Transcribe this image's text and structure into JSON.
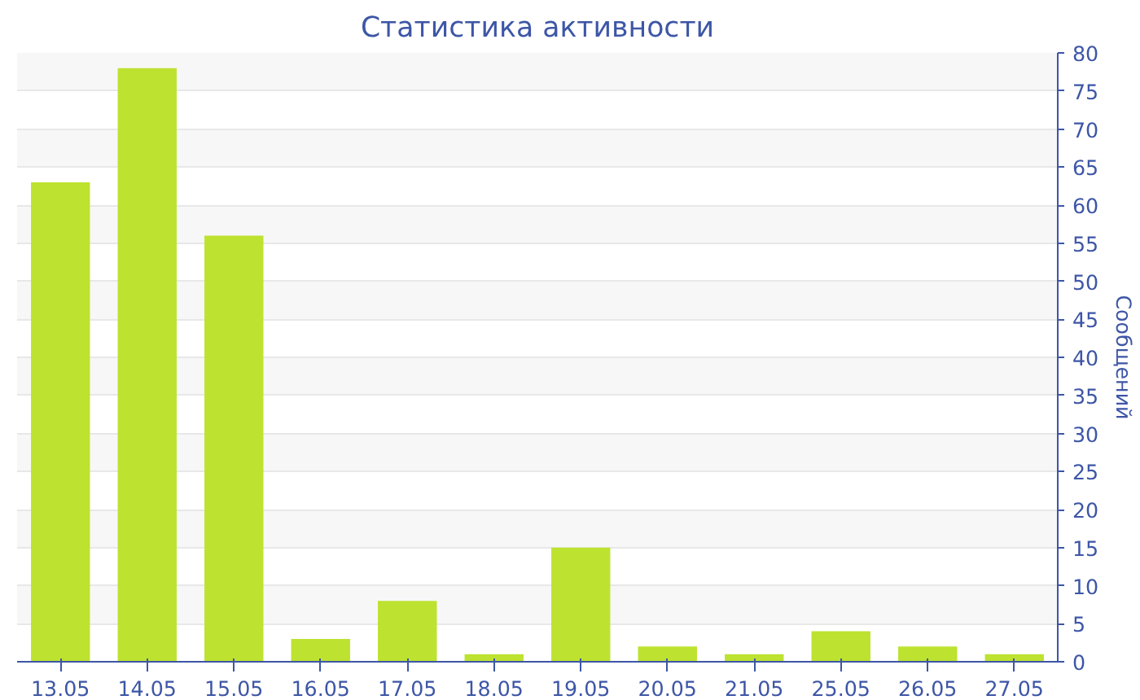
{
  "chart_data": {
    "type": "bar",
    "title": "Статистика активности",
    "ylabel": "Сообщений",
    "categories": [
      "13.05",
      "14.05",
      "15.05",
      "16.05",
      "17.05",
      "18.05",
      "19.05",
      "20.05",
      "21.05",
      "25.05",
      "26.05",
      "27.05"
    ],
    "values": [
      63,
      78,
      56,
      3,
      8,
      1,
      15,
      2,
      1,
      4,
      2,
      1
    ],
    "color": "#bde230",
    "ylim": [
      0,
      80
    ],
    "yticks": [
      0,
      5,
      10,
      15,
      20,
      25,
      30,
      35,
      40,
      45,
      50,
      55,
      60,
      65,
      70,
      75,
      80
    ],
    "grid": "y"
  }
}
